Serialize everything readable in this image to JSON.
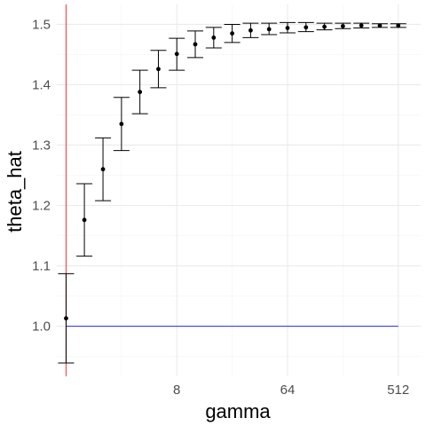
{
  "chart_data": {
    "type": "scatter",
    "xlabel": "gamma",
    "ylabel": "theta_hat",
    "x_scale": "log2",
    "xlim": [
      0.84,
      780
    ],
    "ylim": [
      0.917,
      1.533
    ],
    "x_ticks": [
      8,
      64,
      512
    ],
    "x_tick_labels": [
      "8",
      "64",
      "512"
    ],
    "y_ticks": [
      1.0,
      1.1,
      1.2,
      1.3,
      1.4,
      1.5
    ],
    "y_tick_labels": [
      "1.0",
      "1.1",
      "1.2",
      "1.3",
      "1.4",
      "1.5"
    ],
    "grid": true,
    "series": [
      {
        "x": [
          1.0,
          1.41,
          2.0,
          2.83,
          4.0,
          5.66,
          8.0,
          11.31,
          16.0,
          22.63,
          32.0,
          45.25,
          64.0,
          90.51,
          128.0,
          181.02,
          256.0,
          362.04,
          512.0
        ],
        "y": [
          1.013,
          1.176,
          1.26,
          1.335,
          1.388,
          1.426,
          1.451,
          1.467,
          1.478,
          1.485,
          1.49,
          1.492,
          1.494,
          1.495,
          1.496,
          1.497,
          1.498,
          1.498,
          1.498
        ],
        "ymin": [
          0.939,
          1.116,
          1.208,
          1.291,
          1.352,
          1.395,
          1.424,
          1.445,
          1.461,
          1.47,
          1.478,
          1.483,
          1.486,
          1.488,
          1.491,
          1.493,
          1.494,
          1.495,
          1.495
        ],
        "ymax": [
          1.087,
          1.236,
          1.312,
          1.379,
          1.424,
          1.457,
          1.477,
          1.489,
          1.495,
          1.5,
          1.502,
          1.502,
          1.503,
          1.503,
          1.502,
          1.502,
          1.502,
          1.501,
          1.501
        ],
        "color": "#000000"
      }
    ],
    "reference_lines": [
      {
        "orientation": "vertical",
        "x": 1.0,
        "color": "#ff0000"
      },
      {
        "orientation": "horizontal",
        "y": 1.0,
        "x_from": 1.0,
        "x_to": 512.0,
        "color": "#0000ff"
      }
    ]
  }
}
